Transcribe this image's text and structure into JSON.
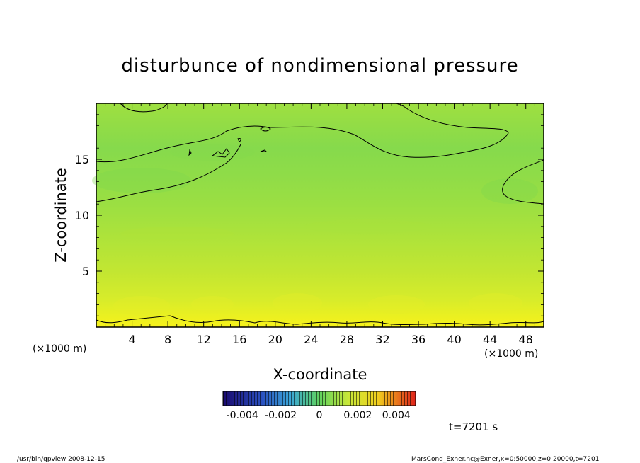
{
  "chart_data": {
    "type": "heatmap",
    "title": "disturbunce of nondimensional pressure",
    "xlabel": "X-coordinate",
    "ylabel": "Z-coordinate",
    "x_unit": "(×1000 m)",
    "y_unit": "(×1000 m)",
    "xlim": [
      0,
      50
    ],
    "ylim": [
      0,
      20
    ],
    "x_ticks": [
      4,
      8,
      12,
      16,
      20,
      24,
      28,
      32,
      36,
      40,
      44,
      48
    ],
    "y_ticks": [
      5,
      10,
      15
    ],
    "colorbar": {
      "range": [
        -0.005,
        0.005
      ],
      "tick_labels": [
        "-0.004",
        "-0.002",
        "0",
        "0.002",
        "0.004"
      ],
      "tick_values": [
        -0.004,
        -0.002,
        0,
        0.002,
        0.004
      ]
    },
    "field_estimate": {
      "z_levels_km": [
        0,
        1,
        2,
        4,
        6,
        8,
        10,
        12,
        14,
        16,
        18,
        20
      ],
      "values": [
        0.0022,
        0.0018,
        0.0014,
        0.001,
        0.0006,
        0.0003,
        0.0001,
        -0.0001,
        -0.0003,
        -0.0002,
        -5e-05,
        0.0001
      ]
    },
    "contours": "contour lines shown near z≈1, z≈11–15 and top-right region",
    "time_label": "t=7201 s"
  },
  "footer": {
    "left": "/usr/bin/gpview   2008-12-15",
    "right": "MarsCond_Exner.nc@Exner,x=0:50000,z=0:20000,t=7201"
  },
  "colors": {
    "low": "#1a0a6e",
    "mid_blue": "#2f7fd8",
    "green": "#5fd25f",
    "yellow": "#f6f21a",
    "red": "#e0221a"
  }
}
